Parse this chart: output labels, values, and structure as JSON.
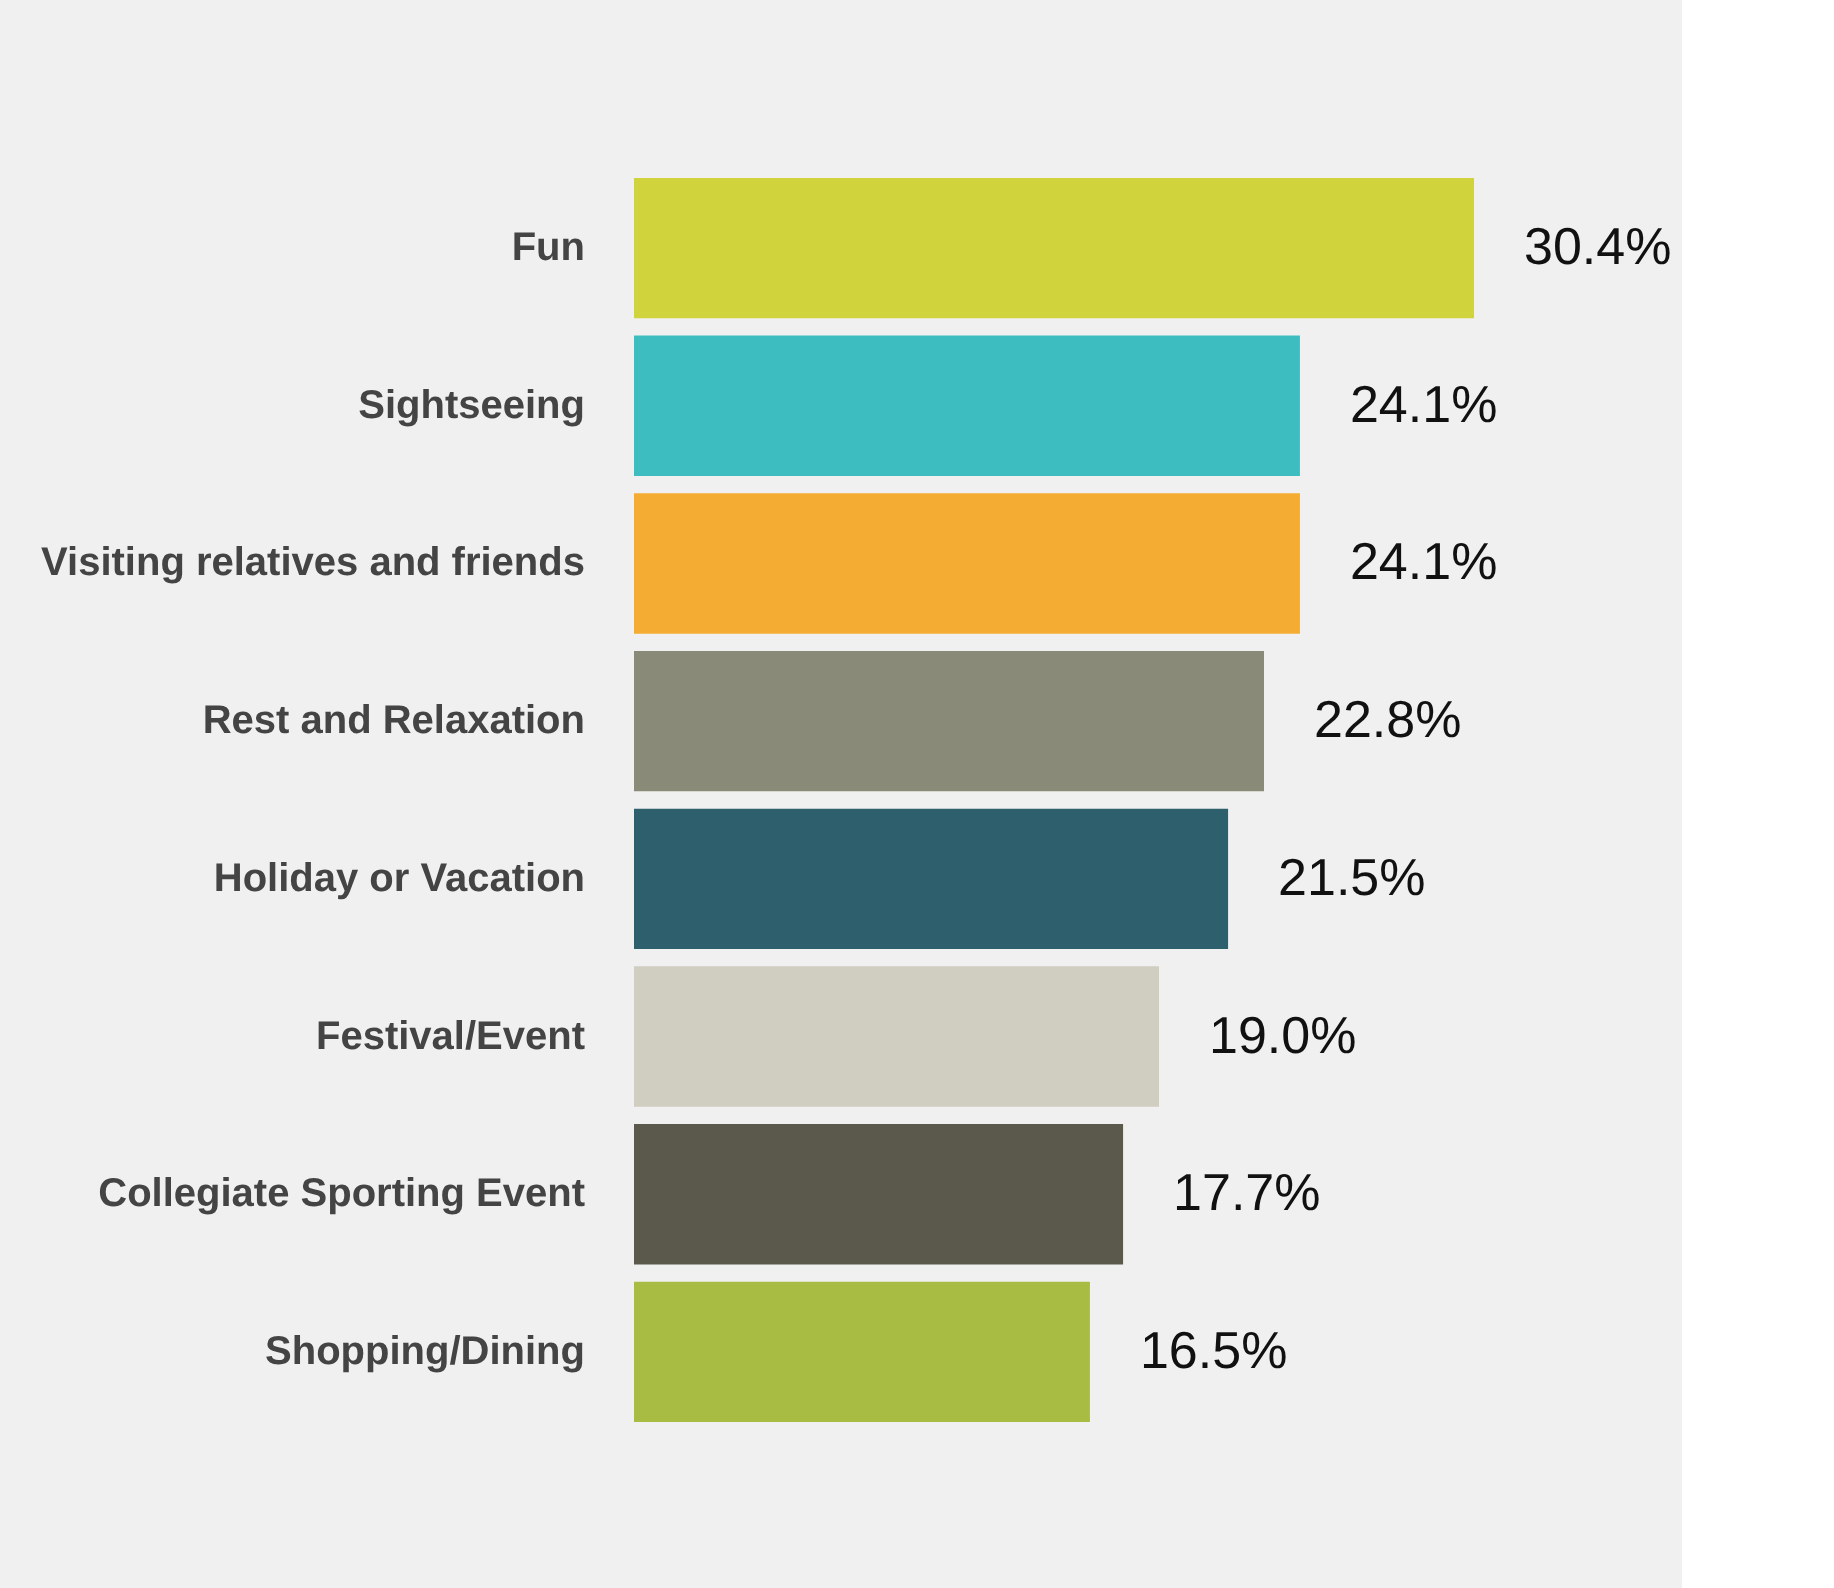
{
  "chart_data": {
    "type": "bar",
    "orientation": "horizontal",
    "categories": [
      "Fun",
      "Sightseeing",
      "Visiting relatives and friends",
      "Rest and Relaxation",
      "Holiday or Vacation",
      "Festival/Event",
      "Collegiate Sporting Event",
      "Shopping/Dining"
    ],
    "values": [
      30.4,
      24.1,
      24.1,
      22.8,
      21.5,
      19.0,
      17.7,
      16.5
    ],
    "value_labels": [
      "30.4%",
      "24.1%",
      "24.1%",
      "22.8%",
      "21.5%",
      "19.0%",
      "17.7%",
      "16.5%"
    ],
    "colors": [
      "#d0d33b",
      "#3dbdbf",
      "#f5ac33",
      "#8a8a78",
      "#2e5f6c",
      "#d0cdc1",
      "#5b594b",
      "#a8bc43"
    ],
    "tick_labels": "y"
  }
}
